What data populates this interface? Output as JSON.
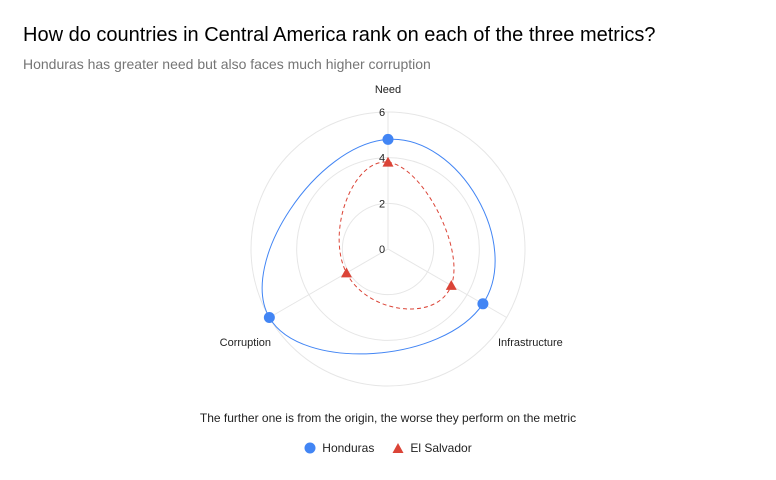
{
  "title": "How do countries in Central America rank on each of the three metrics?",
  "subtitle": "Honduras has greater need but also faces much higher corruption",
  "caption": "The further one is from the origin, the worse they perform on the metric",
  "colors": {
    "honduras": "#4285f4",
    "el_salvador": "#db4437",
    "grid": "#e6e6e6"
  },
  "chart_data": {
    "type": "radar",
    "axes": [
      "Need",
      "Infrastructure",
      "Corruption"
    ],
    "r_ticks": [
      "0",
      "2",
      "4",
      "6"
    ],
    "r_range": [
      0,
      6
    ],
    "grid": true,
    "legend_position": "bottom",
    "series": [
      {
        "name": "Honduras",
        "values": [
          4.8,
          4.8,
          6.0
        ],
        "marker": "circle",
        "line": "solid"
      },
      {
        "name": "El Salvador",
        "values": [
          3.8,
          3.2,
          2.1
        ],
        "marker": "triangle",
        "line": "dashed"
      }
    ]
  }
}
